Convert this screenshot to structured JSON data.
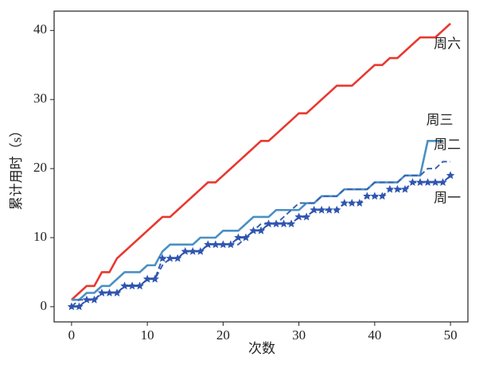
{
  "chart_data": {
    "type": "line",
    "xlabel": "次数",
    "ylabel": "累计用时（s）",
    "x": [
      0,
      1,
      2,
      3,
      4,
      5,
      6,
      7,
      8,
      9,
      10,
      11,
      12,
      13,
      14,
      15,
      16,
      17,
      18,
      19,
      20,
      21,
      22,
      23,
      24,
      25,
      26,
      27,
      28,
      29,
      30,
      31,
      32,
      33,
      34,
      35,
      36,
      37,
      38,
      39,
      40,
      41,
      42,
      43,
      44,
      45,
      46,
      47,
      48,
      49,
      50
    ],
    "xlim": [
      -2.3,
      52.3
    ],
    "xticks": [
      0,
      10,
      20,
      30,
      40,
      50
    ],
    "ylim": [
      -2.2,
      42.8
    ],
    "yticks": [
      0,
      10,
      20,
      30,
      40
    ],
    "grid": false,
    "series": [
      {
        "name": "周六",
        "color": "#e8382f",
        "linestyle": "solid",
        "marker": "none",
        "values": [
          1,
          2,
          3,
          3,
          5,
          5,
          7,
          8,
          9,
          10,
          11,
          12,
          13,
          13,
          14,
          15,
          16,
          17,
          18,
          18,
          19,
          20,
          21,
          22,
          23,
          24,
          24,
          25,
          26,
          27,
          28,
          28,
          29,
          30,
          31,
          32,
          32,
          32,
          33,
          34,
          35,
          35,
          36,
          36,
          37,
          38,
          39,
          39,
          39,
          40,
          41
        ]
      },
      {
        "name": "周三",
        "color": "#4a90c4",
        "linestyle": "solid",
        "marker": "none",
        "values": [
          1,
          1,
          2,
          2,
          3,
          3,
          4,
          5,
          5,
          5,
          6,
          6,
          8,
          9,
          9,
          9,
          9,
          10,
          10,
          10,
          11,
          11,
          11,
          12,
          13,
          13,
          13,
          14,
          14,
          14,
          14,
          15,
          15,
          16,
          16,
          16,
          17,
          17,
          17,
          17,
          18,
          18,
          18,
          18,
          19,
          19,
          19,
          24,
          24,
          24,
          null
        ]
      },
      {
        "name": "周二",
        "color": "#3a62b0",
        "linestyle": "dashed",
        "marker": "none",
        "values": [
          0,
          1,
          1,
          1,
          2,
          2,
          2,
          3,
          3,
          3,
          4,
          4,
          6,
          7,
          7,
          8,
          8,
          8,
          9,
          9,
          9,
          9,
          9,
          10,
          11,
          12,
          12,
          12,
          13,
          14,
          15,
          15,
          15,
          16,
          16,
          16,
          17,
          17,
          17,
          17,
          18,
          18,
          18,
          18,
          19,
          19,
          19,
          20,
          20,
          21,
          21
        ]
      },
      {
        "name": "周一",
        "color": "#2f55b0",
        "linestyle": "dashed",
        "marker": "star",
        "values": [
          0,
          0,
          1,
          1,
          2,
          2,
          2,
          3,
          3,
          3,
          4,
          4,
          7,
          7,
          7,
          8,
          8,
          8,
          9,
          9,
          9,
          9,
          10,
          10,
          11,
          11,
          12,
          12,
          12,
          12,
          13,
          13,
          14,
          14,
          14,
          14,
          15,
          15,
          15,
          16,
          16,
          16,
          17,
          17,
          17,
          18,
          18,
          18,
          18,
          18,
          19
        ]
      }
    ]
  }
}
